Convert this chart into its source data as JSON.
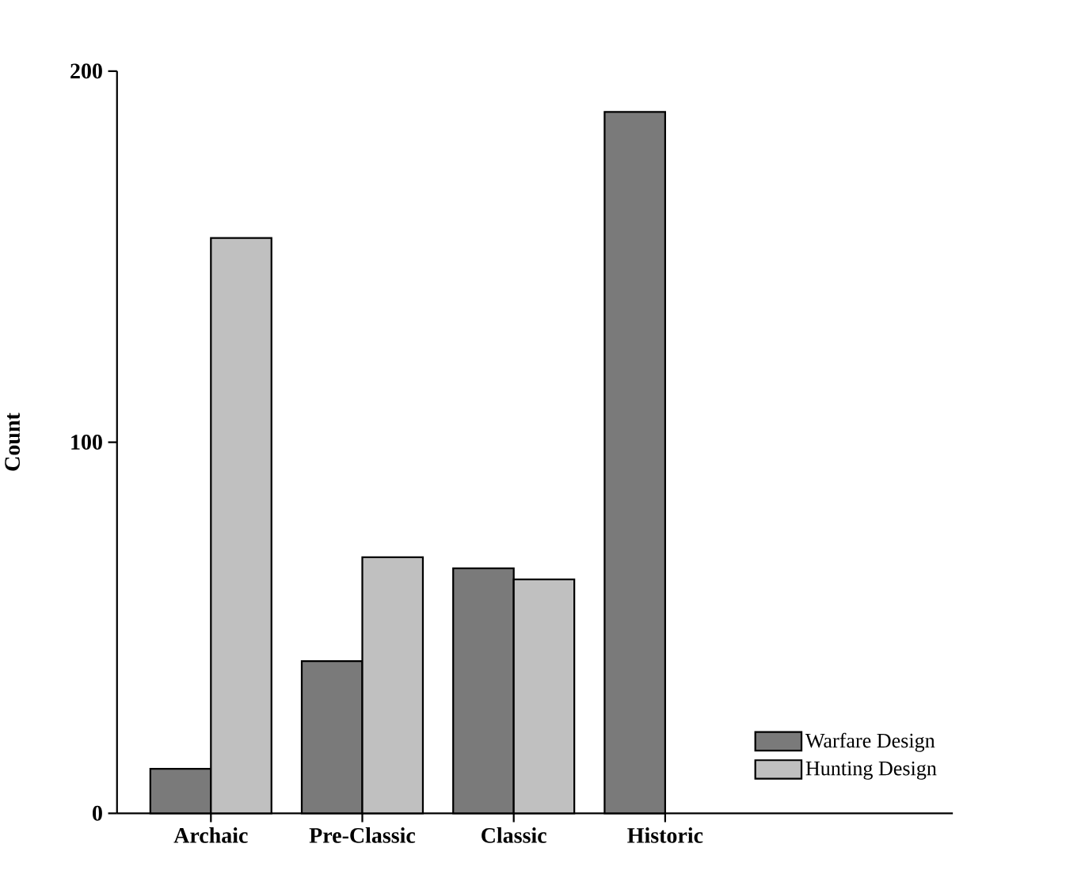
{
  "chart_data": {
    "type": "bar",
    "ylabel": "Count",
    "categories": [
      "Archaic",
      "Pre-Classic",
      "Classic",
      "Historic"
    ],
    "series": [
      {
        "name": "Warfare Design",
        "color": "#7a7a7a",
        "values": [
          12,
          41,
          66,
          189
        ]
      },
      {
        "name": "Hunting Design",
        "color": "#c0c0c0",
        "values": [
          155,
          69,
          63,
          null
        ]
      }
    ],
    "ylim": [
      0,
      200
    ],
    "yticks": [
      0,
      100,
      200
    ],
    "grid": false,
    "legend": "bottom right"
  }
}
